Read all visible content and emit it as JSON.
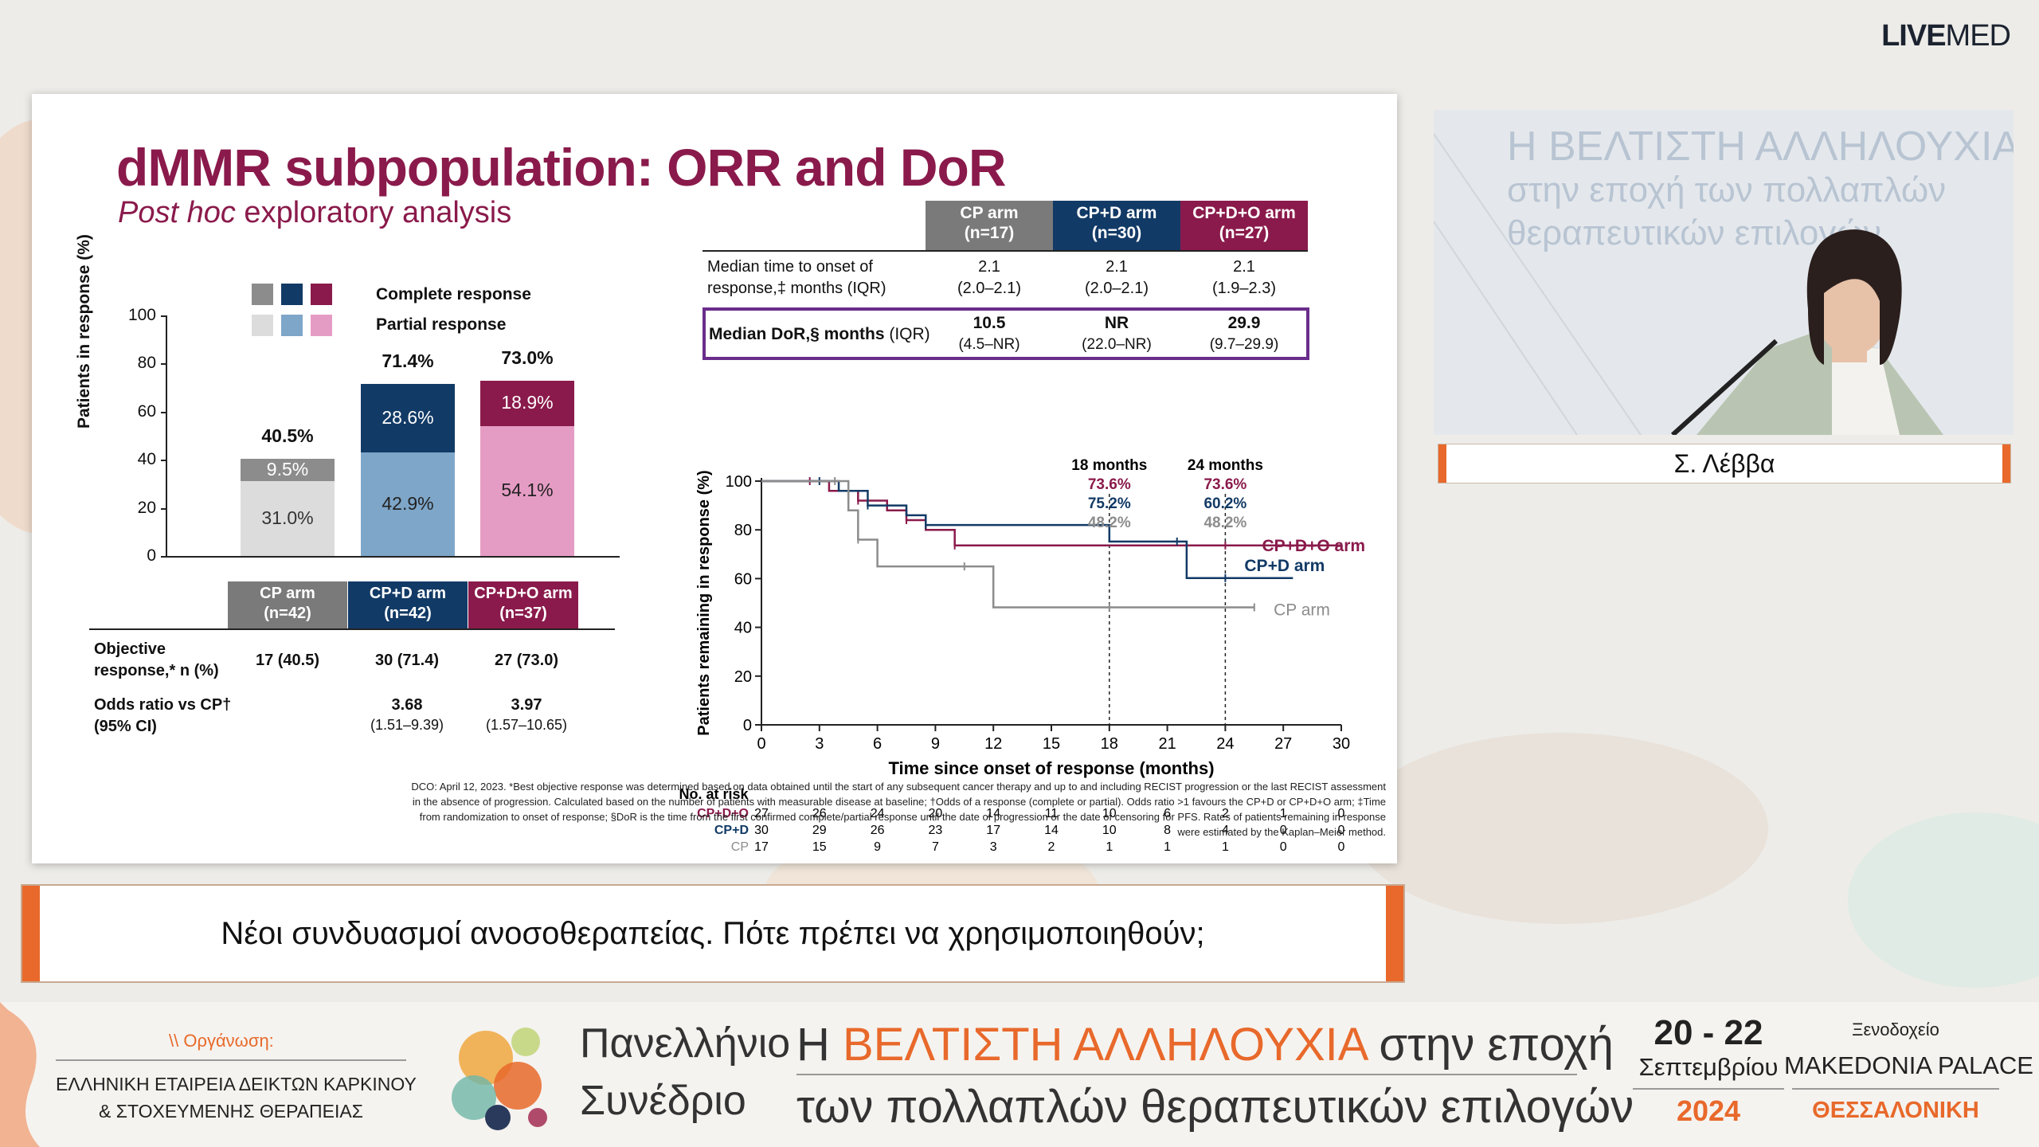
{
  "brand": {
    "bold": "LIVE",
    "regular": "MED"
  },
  "slide": {
    "title": "dMMR subpopulation: ORR and DoR",
    "subtitle_italic": "Post hoc",
    "subtitle_rest": " exploratory analysis",
    "bar_panel": {
      "legend": [
        "Complete response",
        "Partial response"
      ],
      "y_axis_label": "Patients in response (%)",
      "y_ticks": [
        "100",
        "80",
        "60",
        "40",
        "20",
        "0"
      ],
      "arms": [
        {
          "label": "CP arm",
          "n": "(n=42)",
          "total": "40.5%",
          "partial": "31.0%",
          "complete": "9.5%",
          "total_value": 40.5,
          "partial_value": 31.0,
          "complete_value": 9.5,
          "color_complete": "#8c8c8c",
          "color_partial": "#dcdcdc",
          "header_color": "#7a7a7a"
        },
        {
          "label": "CP+D arm",
          "n": "(n=42)",
          "total": "71.4%",
          "partial": "42.9%",
          "complete": "28.6%",
          "total_value": 71.4,
          "partial_value": 42.9,
          "complete_value": 28.6,
          "color_complete": "#123a66",
          "color_partial": "#7ea6c9",
          "header_color": "#123a66"
        },
        {
          "label": "CP+D+O arm",
          "n": "(n=37)",
          "total": "73.0%",
          "partial": "54.1%",
          "complete": "18.9%",
          "total_value": 73.0,
          "partial_value": 54.1,
          "complete_value": 18.9,
          "color_complete": "#8a1a4b",
          "color_partial": "#e59cc4",
          "header_color": "#8a1a4b"
        }
      ],
      "rows": [
        {
          "label_line1": "Objective",
          "label_line2": "response,* n (%)",
          "values": [
            "17 (40.5)",
            "30 (71.4)",
            "27 (73.0)"
          ],
          "sub": [
            "",
            "",
            ""
          ]
        },
        {
          "label_line1": "Odds ratio vs CP†",
          "label_line2": "(95% CI)",
          "values": [
            "",
            "3.68",
            "3.97"
          ],
          "sub": [
            "",
            "(1.51–9.39)",
            "(1.57–10.65)"
          ]
        }
      ]
    },
    "dor_table": {
      "headers": [
        {
          "line1": "CP arm",
          "line2": "(n=17)",
          "color": "#7a7a7a"
        },
        {
          "line1": "CP+D arm",
          "line2": "(n=30)",
          "color": "#123a66"
        },
        {
          "line1": "CP+D+O arm",
          "line2": "(n=27)",
          "color": "#8a1a4b"
        }
      ],
      "row1_label_line1": "Median time to onset of",
      "row1_label_line2": "response,‡ months (IQR)",
      "row1_values": [
        [
          "2.1",
          "(2.0–2.1)"
        ],
        [
          "2.1",
          "(2.0–2.1)"
        ],
        [
          "2.1",
          "(1.9–2.3)"
        ]
      ],
      "row2_label_bold": "Median DoR,§ months",
      "row2_label_rest": " (IQR)",
      "row2_values": [
        [
          "10.5",
          "(4.5–NR)"
        ],
        [
          "NR",
          "(22.0–NR)"
        ],
        [
          "29.9",
          "(9.7–29.9)"
        ]
      ]
    },
    "chart_data": {
      "type": "line",
      "title": "",
      "xlabel": "Time since onset of response (months)",
      "ylabel": "Patients remaining in response (%)",
      "xlim": [
        0,
        30
      ],
      "ylim": [
        0,
        100
      ],
      "x_ticks": [
        0,
        3,
        6,
        9,
        12,
        15,
        18,
        21,
        24,
        27,
        30
      ],
      "y_ticks": [
        0,
        20,
        40,
        60,
        80,
        100
      ],
      "series": [
        {
          "name": "CP+D+O arm",
          "color": "#8a1a4b",
          "x": [
            0,
            2.5,
            3.5,
            5,
            6.5,
            7.5,
            8.5,
            10,
            18,
            24,
            30
          ],
          "y": [
            100,
            100,
            96,
            92,
            88,
            84,
            80,
            73.6,
            73.6,
            73.6,
            73.6
          ]
        },
        {
          "name": "CP+D arm",
          "color": "#123a66",
          "x": [
            0,
            3,
            4,
            5.5,
            7.5,
            8.5,
            18,
            21.5,
            22,
            24,
            27.5
          ],
          "y": [
            100,
            100,
            96,
            90,
            86,
            82,
            75.2,
            75.2,
            60.2,
            60.2,
            60.2
          ]
        },
        {
          "name": "CP arm",
          "color": "#8c8c8c",
          "x": [
            0,
            3.8,
            4.5,
            5,
            6,
            10.5,
            12,
            18,
            24,
            25.5
          ],
          "y": [
            100,
            100,
            88,
            76,
            65,
            65,
            48.2,
            48.2,
            48.2,
            48.2
          ]
        }
      ],
      "annotations": [
        {
          "label": "18 months",
          "values": [
            "73.6%",
            "75.2%",
            "48.2%"
          ]
        },
        {
          "label": "24 months",
          "values": [
            "73.6%",
            "60.2%",
            "48.2%"
          ]
        }
      ],
      "legend_placement": "right of curves",
      "grid": false
    },
    "no_at_risk": {
      "label": "No. at risk",
      "rows": [
        {
          "name": "CP+D+O",
          "color": "#8a1a4b",
          "values": [
            "27",
            "26",
            "24",
            "20",
            "14",
            "11",
            "10",
            "6",
            "2",
            "1",
            "0"
          ]
        },
        {
          "name": "CP+D",
          "color": "#123a66",
          "values": [
            "30",
            "29",
            "26",
            "23",
            "17",
            "14",
            "10",
            "8",
            "4",
            "0",
            "0"
          ]
        },
        {
          "name": "CP",
          "color": "#8c8c8c",
          "values": [
            "17",
            "15",
            "9",
            "7",
            "3",
            "2",
            "1",
            "1",
            "1",
            "0",
            "0"
          ]
        }
      ]
    },
    "footnote": [
      "DCO: April 12, 2023. *Best objective response was determined based on data obtained until the start of any subsequent cancer therapy and up to and including RECIST progression or the last RECIST assessment",
      "in the absence of progression. Calculated based on the number of patients with measurable disease at baseline; †Odds of a response (complete or partial). Odds ratio >1 favours the CP+D or CP+D+O arm; ‡Time",
      "from randomization to onset of response; §DoR is the time from the first confirmed complete/partial response until the date of progression or the date of censoring for PFS. Rates of patients remaining in response",
      "were estimated by the Kaplan–Meier method."
    ]
  },
  "video": {
    "backdrop_lines": [
      "Η ΒΕΛΤΙΣΤΗ ΑΛΛΗΛΟΥΧΙΑ",
      "στην εποχή των πολλαπλών",
      "θεραπευτικών επιλογών"
    ],
    "speaker_name": "Σ. Λέββα"
  },
  "caption": "Νέοι συνδυασμοί ανοσοθεραπείας. Πότε πρέπει να χρησιμοποιηθούν;",
  "footer": {
    "organizer_label": "\\\\ Οργάνωση:",
    "organizer_line1": "ΕΛΛΗΝΙΚΗ ΕΤΑΙΡΕΙΑ ΔΕΙΚΤΩΝ ΚΑΡΚΙΝΟΥ",
    "organizer_line2": "& ΣΤΟΧΕΥΜΕΝΗΣ ΘΕΡΑΠΕΙΑΣ",
    "conf_line1": "Πανελλήνιο",
    "conf_line2": "Συνέδριο",
    "theme_h": "Η ",
    "theme_highlight": "ΒΕΛΤΙΣΤΗ ΑΛΛΗΛΟΥΧΙΑ",
    "theme_rest": " στην εποχή",
    "theme_line2": "των πολλαπλών θεραπευτικών επιλογών",
    "dates": "20 - 22",
    "month": "Σεπτεμβρίου",
    "year": "2024",
    "venue_label": "Ξενοδοχείο",
    "venue_name": "MAKEDONIA PALACE",
    "city": "ΘΕΣΣΑΛΟΝΙΚΗ",
    "accent_color": "#e8692b"
  }
}
